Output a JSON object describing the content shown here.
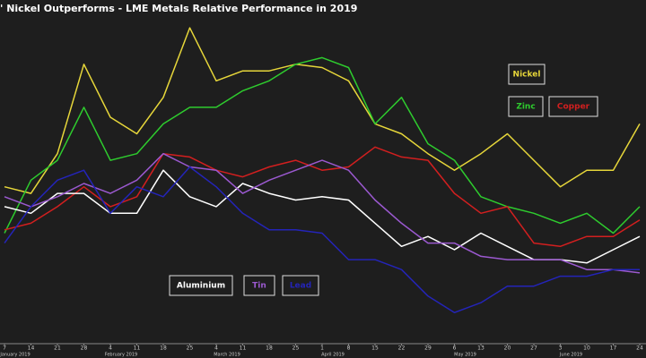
{
  "chart_data": {
    "type": "line",
    "title": "' Nickel Outperforms - LME Metals Relative Performance in 2019",
    "categories": [
      "7",
      "14",
      "21",
      "28",
      "4",
      "11",
      "18",
      "25",
      "4",
      "11",
      "18",
      "25",
      "1",
      "8",
      "15",
      "22",
      "29",
      "6",
      "13",
      "20",
      "27",
      "3",
      "10",
      "17",
      "24"
    ],
    "months": [
      "January 2019",
      "February 2019",
      "March 2019",
      "April 2019",
      "May 2019",
      "June 2019"
    ],
    "ylim": [
      0,
      100
    ],
    "series": [
      {
        "name": "Nickel",
        "color": "#e6d63a",
        "values": [
          49,
          47,
          59,
          86,
          70,
          65,
          76,
          97,
          81,
          84,
          84,
          86,
          85,
          81,
          68,
          65,
          59,
          54,
          59,
          65,
          57,
          49,
          54,
          54,
          68
        ]
      },
      {
        "name": "Zinc",
        "color": "#2ecc2e",
        "values": [
          35,
          51,
          57,
          73,
          57,
          59,
          68,
          73,
          73,
          78,
          81,
          86,
          88,
          85,
          68,
          76,
          62,
          57,
          46,
          43,
          41,
          38,
          41,
          35,
          43
        ]
      },
      {
        "name": "Copper",
        "color": "#d21f1f",
        "values": [
          36,
          38,
          43,
          49,
          43,
          46,
          59,
          58,
          54,
          52,
          55,
          57,
          54,
          55,
          61,
          58,
          57,
          47,
          41,
          43,
          32,
          31,
          34,
          34,
          39
        ]
      },
      {
        "name": "Aluminium",
        "color": "#ffffff",
        "values": [
          43,
          41,
          47,
          47,
          41,
          41,
          54,
          46,
          43,
          50,
          47,
          45,
          46,
          45,
          38,
          31,
          34,
          30,
          35,
          31,
          27,
          27,
          26,
          30,
          34
        ]
      },
      {
        "name": "Tin",
        "color": "#9b59d0",
        "values": [
          46,
          43,
          46,
          50,
          47,
          51,
          59,
          55,
          54,
          47,
          51,
          54,
          57,
          54,
          45,
          38,
          32,
          32,
          28,
          27,
          27,
          27,
          24,
          24,
          23
        ]
      },
      {
        "name": "Lead",
        "color": "#2424b8",
        "values": [
          32,
          43,
          51,
          54,
          41,
          49,
          46,
          55,
          49,
          41,
          36,
          36,
          35,
          27,
          27,
          24,
          16,
          11,
          14,
          19,
          19,
          22,
          22,
          24,
          24
        ]
      }
    ]
  }
}
